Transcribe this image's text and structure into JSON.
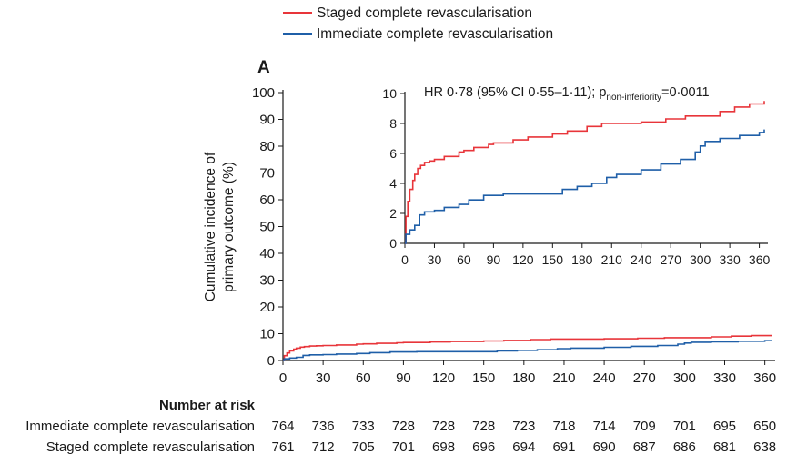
{
  "panel_label": "A",
  "chart_data": [
    {
      "type": "line",
      "ylabel": [
        "Cumulative incidence of",
        "primary outcome (%)"
      ],
      "xlim": [
        0,
        365
      ],
      "ylim": [
        0,
        100
      ],
      "xticks": [
        0,
        30,
        60,
        90,
        120,
        150,
        180,
        210,
        240,
        270,
        300,
        330,
        360
      ],
      "yticks": [
        0,
        10,
        20,
        30,
        40,
        50,
        60,
        70,
        80,
        90,
        100
      ],
      "legend": "top",
      "series": [
        {
          "name": "Staged complete revascularisation",
          "color": "#e8353a",
          "points": [
            [
              0,
              0
            ],
            [
              1,
              1.8
            ],
            [
              3,
              2.8
            ],
            [
              5,
              3.6
            ],
            [
              8,
              4.2
            ],
            [
              10,
              4.6
            ],
            [
              13,
              5.0
            ],
            [
              16,
              5.2
            ],
            [
              20,
              5.4
            ],
            [
              25,
              5.5
            ],
            [
              30,
              5.6
            ],
            [
              40,
              5.8
            ],
            [
              55,
              6.1
            ],
            [
              60,
              6.2
            ],
            [
              70,
              6.4
            ],
            [
              85,
              6.6
            ],
            [
              90,
              6.7
            ],
            [
              110,
              6.9
            ],
            [
              125,
              7.1
            ],
            [
              150,
              7.3
            ],
            [
              165,
              7.5
            ],
            [
              185,
              7.8
            ],
            [
              200,
              8.0
            ],
            [
              240,
              8.1
            ],
            [
              265,
              8.3
            ],
            [
              285,
              8.5
            ],
            [
              300,
              8.5
            ],
            [
              320,
              8.8
            ],
            [
              335,
              9.1
            ],
            [
              350,
              9.3
            ],
            [
              365,
              9.5
            ]
          ]
        },
        {
          "name": "Immediate complete revascularisation",
          "color": "#1f5fa8",
          "points": [
            [
              0,
              0
            ],
            [
              1,
              0.6
            ],
            [
              5,
              0.9
            ],
            [
              10,
              1.2
            ],
            [
              15,
              1.9
            ],
            [
              20,
              2.1
            ],
            [
              30,
              2.2
            ],
            [
              40,
              2.4
            ],
            [
              55,
              2.6
            ],
            [
              65,
              2.9
            ],
            [
              80,
              3.2
            ],
            [
              100,
              3.3
            ],
            [
              150,
              3.3
            ],
            [
              160,
              3.6
            ],
            [
              175,
              3.8
            ],
            [
              190,
              4.0
            ],
            [
              205,
              4.4
            ],
            [
              215,
              4.6
            ],
            [
              240,
              4.9
            ],
            [
              260,
              5.3
            ],
            [
              280,
              5.6
            ],
            [
              295,
              6.1
            ],
            [
              300,
              6.5
            ],
            [
              305,
              6.8
            ],
            [
              320,
              7.0
            ],
            [
              340,
              7.2
            ],
            [
              360,
              7.4
            ],
            [
              365,
              7.6
            ]
          ]
        }
      ]
    },
    {
      "type": "line",
      "inset": true,
      "annotation": "HR 0·78 (95% CI 0·55–1·11); p",
      "annotation_sub": "non-inferiority",
      "annotation_tail": "=0·0011",
      "xlim": [
        0,
        365
      ],
      "ylim": [
        0,
        10
      ],
      "xticks": [
        0,
        30,
        60,
        90,
        120,
        150,
        180,
        210,
        240,
        270,
        300,
        330,
        360
      ],
      "yticks": [
        0,
        2,
        4,
        6,
        8,
        10
      ]
    }
  ],
  "risk_table": {
    "title": "Number at risk",
    "rows": [
      {
        "label": "Immediate complete revascularisation",
        "values": [
          764,
          736,
          733,
          728,
          728,
          728,
          723,
          718,
          714,
          709,
          701,
          695,
          650
        ]
      },
      {
        "label": "Staged complete revascularisation",
        "values": [
          761,
          712,
          705,
          701,
          698,
          696,
          694,
          691,
          690,
          687,
          686,
          681,
          638
        ]
      }
    ]
  }
}
